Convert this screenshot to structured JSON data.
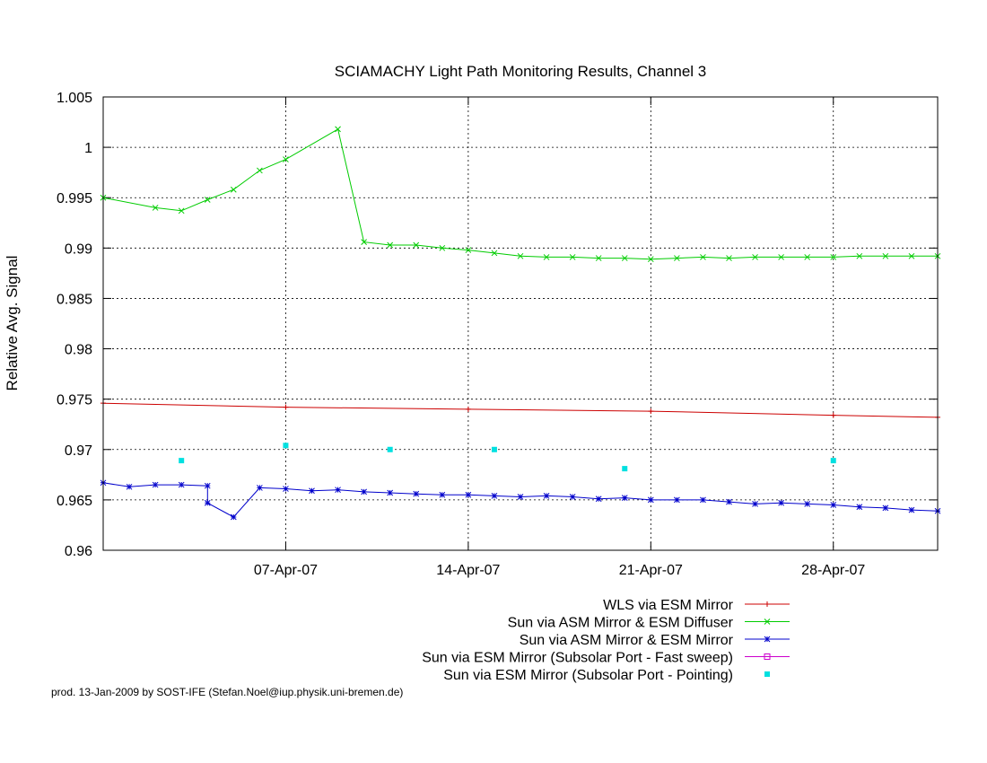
{
  "chart_data": {
    "type": "line",
    "title": "SCIAMACHY Light Path Monitoring Results, Channel 3",
    "xlabel": "",
    "ylabel": "Relative Avg. Signal",
    "xlim": [
      "2007-03-31",
      "2007-05-02"
    ],
    "ylim": [
      0.96,
      1.005
    ],
    "grid": true,
    "legend_position": "below plot, right-aligned",
    "footer": "prod. 13-Jan-2009 by SOST-IFE (Stefan.Noel@iup.physik.uni-bremen.de)",
    "x_ticks": [
      {
        "label": "07-Apr-07",
        "date": "2007-04-07"
      },
      {
        "label": "14-Apr-07",
        "date": "2007-04-14"
      },
      {
        "label": "21-Apr-07",
        "date": "2007-04-21"
      },
      {
        "label": "28-Apr-07",
        "date": "2007-04-28"
      }
    ],
    "y_ticks": [
      {
        "label": "0.96",
        "value": 0.96
      },
      {
        "label": "0.965",
        "value": 0.965
      },
      {
        "label": "0.97",
        "value": 0.97
      },
      {
        "label": "0.975",
        "value": 0.975
      },
      {
        "label": "0.98",
        "value": 0.98
      },
      {
        "label": "0.985",
        "value": 0.985
      },
      {
        "label": "0.99",
        "value": 0.99
      },
      {
        "label": "0.995",
        "value": 0.995
      },
      {
        "label": "1",
        "value": 1.0
      },
      {
        "label": "1.005",
        "value": 1.005
      }
    ],
    "series": [
      {
        "name": "WLS via ESM Mirror",
        "color": "#cc0000",
        "style": "line+points",
        "marker": "plus",
        "x": [
          "2007-03-31",
          "2007-04-07",
          "2007-04-14",
          "2007-04-21",
          "2007-04-28",
          "2007-05-02"
        ],
        "y": [
          0.9746,
          0.9742,
          0.974,
          0.9738,
          0.9734,
          0.9732
        ]
      },
      {
        "name": "Sun via ASM Mirror & ESM Diffuser",
        "color": "#00cc00",
        "style": "line+points",
        "marker": "cross",
        "x": [
          "2007-03-31",
          "2007-04-02",
          "2007-04-03",
          "2007-04-04",
          "2007-04-05",
          "2007-04-06",
          "2007-04-07",
          "2007-04-09",
          "2007-04-10",
          "2007-04-11",
          "2007-04-12",
          "2007-04-13",
          "2007-04-14",
          "2007-04-15",
          "2007-04-16",
          "2007-04-17",
          "2007-04-18",
          "2007-04-19",
          "2007-04-20",
          "2007-04-21",
          "2007-04-22",
          "2007-04-23",
          "2007-04-24",
          "2007-04-25",
          "2007-04-26",
          "2007-04-27",
          "2007-04-28",
          "2007-04-29",
          "2007-04-30",
          "2007-05-01",
          "2007-05-02"
        ],
        "y": [
          0.995,
          0.994,
          0.9937,
          0.9948,
          0.9958,
          0.9977,
          0.9988,
          1.0018,
          0.9906,
          0.9903,
          0.9903,
          0.99,
          0.9898,
          0.9895,
          0.9892,
          0.9891,
          0.9891,
          0.989,
          0.989,
          0.9889,
          0.989,
          0.9891,
          0.989,
          0.9891,
          0.9891,
          0.9891,
          0.9891,
          0.9892,
          0.9892,
          0.9892,
          0.9892
        ]
      },
      {
        "name": "Sun via ASM Mirror & ESM Mirror",
        "color": "#0000cc",
        "style": "line+points",
        "marker": "star",
        "x": [
          "2007-03-31",
          "2007-04-01",
          "2007-04-02",
          "2007-04-03",
          "2007-04-04",
          "2007-04-04",
          "2007-04-05",
          "2007-04-06",
          "2007-04-07",
          "2007-04-08",
          "2007-04-09",
          "2007-04-10",
          "2007-04-11",
          "2007-04-12",
          "2007-04-13",
          "2007-04-14",
          "2007-04-15",
          "2007-04-16",
          "2007-04-17",
          "2007-04-18",
          "2007-04-19",
          "2007-04-20",
          "2007-04-21",
          "2007-04-22",
          "2007-04-23",
          "2007-04-24",
          "2007-04-25",
          "2007-04-26",
          "2007-04-27",
          "2007-04-28",
          "2007-04-29",
          "2007-04-30",
          "2007-05-01",
          "2007-05-02"
        ],
        "y": [
          0.9667,
          0.9663,
          0.9665,
          0.9665,
          0.9664,
          0.9647,
          0.9633,
          0.9662,
          0.9661,
          0.9659,
          0.966,
          0.9658,
          0.9657,
          0.9656,
          0.9655,
          0.9655,
          0.9654,
          0.9653,
          0.9654,
          0.9653,
          0.9651,
          0.9652,
          0.965,
          0.965,
          0.965,
          0.9648,
          0.9646,
          0.9647,
          0.9646,
          0.9645,
          0.9643,
          0.9642,
          0.964,
          0.9639
        ]
      },
      {
        "name": "Sun via ESM Mirror (Subsolar Port - Fast sweep)",
        "color": "#cc00cc",
        "style": "line+points",
        "marker": "square",
        "x": [],
        "y": []
      },
      {
        "name": "Sun via ESM Mirror (Subsolar Port - Pointing)",
        "color": "#00e0e0",
        "style": "points",
        "marker": "filled-square",
        "x": [
          "2007-04-03",
          "2007-04-07",
          "2007-04-11",
          "2007-04-15",
          "2007-04-20",
          "2007-04-28"
        ],
        "y": [
          0.9689,
          0.9704,
          0.97,
          0.97,
          0.9681,
          0.9689
        ]
      }
    ]
  }
}
